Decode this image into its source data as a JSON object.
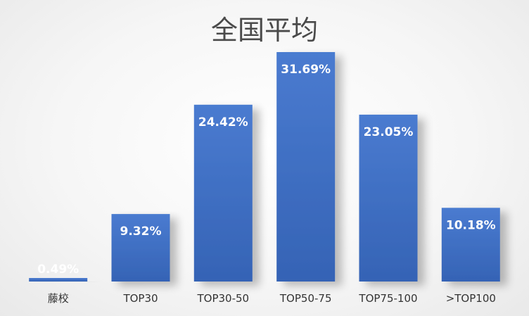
{
  "chart_data": {
    "type": "bar",
    "title": "全国平均",
    "categories": [
      "藤校",
      "TOP30",
      "TOP30-50",
      "TOP50-75",
      "TOP75-100",
      ">TOP100"
    ],
    "values": [
      0.49,
      9.32,
      24.42,
      31.69,
      23.05,
      10.18
    ],
    "data_labels": [
      "0.49%",
      "9.32%",
      "24.42%",
      "31.69%",
      "23.05%",
      "10.18%"
    ],
    "xlabel": "",
    "ylabel": "",
    "ylim": [
      0,
      35
    ],
    "grid": false,
    "legend": "none",
    "colors": {
      "bar": "#3f6fc4",
      "bar_dark": "#2f5aa8",
      "data_label": "#ffffff",
      "title": "#4a4a4a",
      "tick_label": "#333333"
    }
  }
}
